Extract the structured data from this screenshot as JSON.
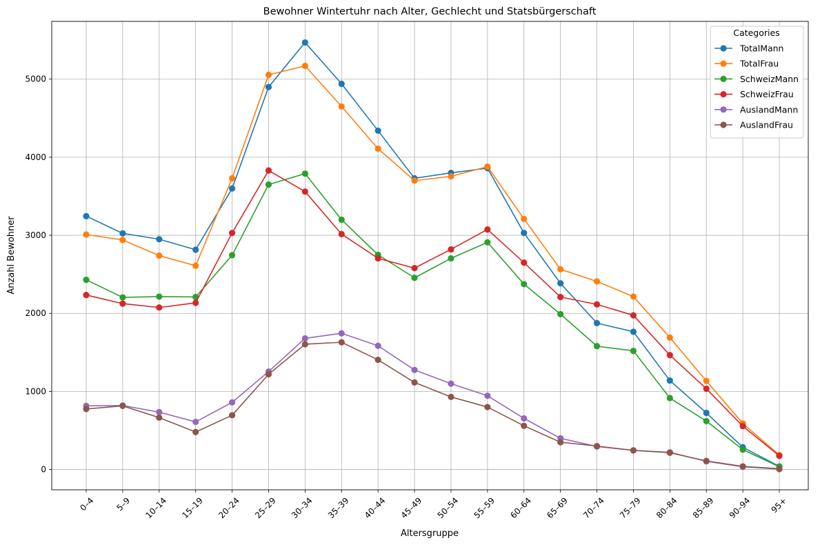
{
  "chart_data": {
    "type": "line",
    "title": "Bewohner Wintertuhr nach Alter, Gechlecht und Statsbürgerschaft",
    "xlabel": "Altersgruppe",
    "ylabel": "Anzahl Bewohner",
    "ylim": [
      -260,
      5740
    ],
    "yticks": [
      0,
      1000,
      2000,
      3000,
      4000,
      5000
    ],
    "grid": true,
    "legend": {
      "title": "Categories",
      "placement": "top-right"
    },
    "categories": [
      "0–4",
      "5–9",
      "10–14",
      "15–19",
      "20–24",
      "25–29",
      "30–34",
      "35–39",
      "40–44",
      "45–49",
      "50–54",
      "55–59",
      "60–64",
      "65–69",
      "70–74",
      "75–79",
      "80–84",
      "85–89",
      "90–94",
      "95+"
    ],
    "series": [
      {
        "name": "TotalMann",
        "color": "#1f77b4",
        "values": [
          3245,
          3025,
          2950,
          2815,
          3600,
          4900,
          5470,
          4940,
          4340,
          3730,
          3800,
          3860,
          3030,
          2385,
          1875,
          1765,
          1140,
          725,
          285,
          40
        ]
      },
      {
        "name": "TotalFrau",
        "color": "#ff7f0e",
        "values": [
          3010,
          2940,
          2740,
          2610,
          3730,
          5055,
          5170,
          4650,
          4110,
          3700,
          3755,
          3880,
          3210,
          2565,
          2410,
          2215,
          1690,
          1135,
          590,
          185
        ]
      },
      {
        "name": "SchweizMann",
        "color": "#2ca02c",
        "values": [
          2430,
          2205,
          2215,
          2210,
          2745,
          3650,
          3790,
          3200,
          2750,
          2455,
          2705,
          2910,
          2375,
          1990,
          1580,
          1520,
          915,
          620,
          255,
          35
        ]
      },
      {
        "name": "SchweizFrau",
        "color": "#d62728",
        "values": [
          2235,
          2125,
          2075,
          2135,
          3030,
          3830,
          3560,
          3015,
          2705,
          2580,
          2820,
          3075,
          2650,
          2210,
          2115,
          1975,
          1465,
          1035,
          555,
          175
        ]
      },
      {
        "name": "AuslandMann",
        "color": "#9467bd",
        "values": [
          815,
          820,
          735,
          610,
          860,
          1255,
          1680,
          1745,
          1585,
          1275,
          1100,
          945,
          655,
          400,
          295,
          245,
          220,
          105,
          35,
          5
        ]
      },
      {
        "name": "AuslandFrau",
        "color": "#8c564b",
        "values": [
          775,
          815,
          665,
          480,
          695,
          1220,
          1605,
          1630,
          1405,
          1115,
          930,
          800,
          560,
          350,
          300,
          245,
          215,
          110,
          40,
          10
        ]
      }
    ]
  }
}
